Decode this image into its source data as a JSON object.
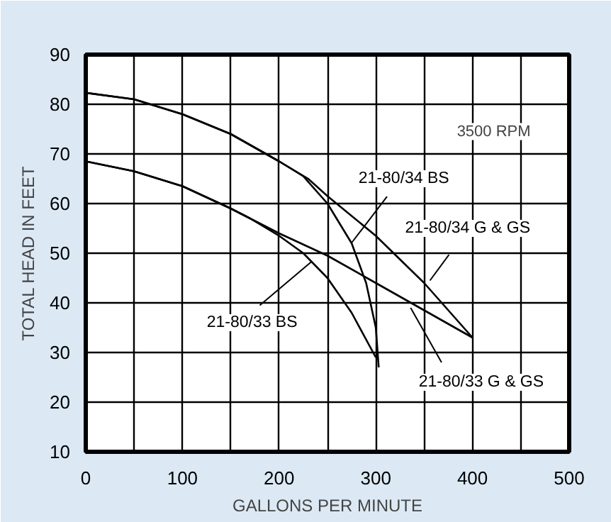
{
  "chart_data": {
    "type": "line",
    "xlabel": "GALLONS PER MINUTE",
    "ylabel": "TOTAL HEAD IN FEET",
    "xlim": [
      0,
      500
    ],
    "ylim": [
      10,
      90
    ],
    "xticks": [
      0,
      100,
      200,
      300,
      400,
      500
    ],
    "yticks": [
      10,
      20,
      30,
      40,
      50,
      60,
      70,
      80,
      90
    ],
    "grid": true,
    "legend": false,
    "marker": "none",
    "line_style": "solid",
    "annotations": [
      "3500 RPM"
    ],
    "series": [
      {
        "name": "21-80/34 BS",
        "color": "#000000",
        "x": [
          0,
          50,
          100,
          150,
          200,
          225,
          250,
          275,
          290,
          300,
          303
        ],
        "values": [
          82.3,
          81,
          78,
          74,
          68.5,
          65.5,
          60,
          52,
          44,
          35,
          27
        ]
      },
      {
        "name": "21-80/34 G & GS",
        "color": "#000000",
        "x": [
          0,
          50,
          100,
          150,
          200,
          230,
          250,
          300,
          350,
          400
        ],
        "values": [
          82.3,
          81,
          78,
          74,
          68.5,
          65,
          61.5,
          53.5,
          44,
          33
        ]
      },
      {
        "name": "21-80/33 BS",
        "color": "#000000",
        "x": [
          0,
          50,
          100,
          150,
          170,
          200,
          225,
          250,
          275,
          300
        ],
        "values": [
          68.5,
          66.5,
          63.5,
          59,
          57,
          53.5,
          50,
          45,
          38,
          29
        ]
      },
      {
        "name": "21-80/33 G & GS",
        "color": "#000000",
        "x": [
          0,
          50,
          100,
          150,
          200,
          250,
          300,
          350,
          400
        ],
        "values": [
          68.5,
          66.5,
          63.5,
          59,
          54,
          49.5,
          44,
          38.5,
          33
        ]
      }
    ]
  }
}
